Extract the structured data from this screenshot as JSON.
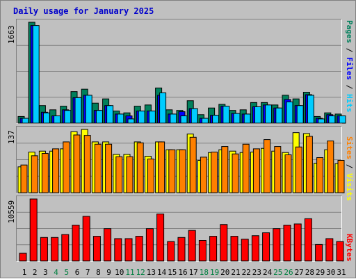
{
  "title": "Daily usage for January 2025",
  "colors": {
    "pages": "#00805c",
    "files": "#0000ff",
    "hits": "#00ccff",
    "visits": "#ffff00",
    "sites": "#ff8000",
    "kbytes": "#ff0000",
    "weekend_day": "#008040",
    "weekday": "#000000"
  },
  "right_labels": {
    "top": [
      {
        "text": "Pages",
        "color": "#00805c"
      },
      {
        "text": " / ",
        "color": "#000000"
      },
      {
        "text": "Files",
        "color": "#0000ff"
      },
      {
        "text": " / ",
        "color": "#000000"
      },
      {
        "text": "Hits",
        "color": "#00ccff"
      }
    ],
    "middle": [
      {
        "text": "Sites",
        "color": "#ff8000"
      },
      {
        "text": " / ",
        "color": "#000000"
      },
      {
        "text": "Visits",
        "color": "#ffff00"
      }
    ],
    "bottom": [
      {
        "text": "KBytes",
        "color": "#ff0000"
      }
    ]
  },
  "chart_data": [
    {
      "type": "bar",
      "panel": "hits",
      "ymax_label": "1663",
      "ylim": [
        0,
        1663
      ],
      "x": [
        1,
        2,
        3,
        4,
        5,
        6,
        7,
        8,
        9,
        10,
        11,
        12,
        13,
        14,
        15,
        16,
        17,
        18,
        19,
        20,
        21,
        22,
        23,
        24,
        25,
        26,
        27,
        28,
        29,
        30,
        31
      ],
      "series": [
        {
          "name": "Pages",
          "values": [
            110,
            1663,
            290,
            220,
            280,
            520,
            560,
            330,
            400,
            200,
            170,
            280,
            300,
            580,
            220,
            210,
            370,
            140,
            250,
            310,
            210,
            220,
            340,
            340,
            300,
            460,
            400,
            510,
            110,
            170,
            150
          ]
        },
        {
          "name": "Files",
          "values": [
            80,
            1610,
            180,
            120,
            220,
            420,
            460,
            210,
            290,
            150,
            120,
            200,
            200,
            460,
            150,
            190,
            240,
            80,
            130,
            280,
            160,
            150,
            270,
            300,
            250,
            390,
            290,
            470,
            80,
            140,
            120
          ]
        },
        {
          "name": "Hits",
          "values": [
            80,
            1610,
            170,
            120,
            210,
            420,
            460,
            210,
            290,
            150,
            70,
            200,
            200,
            500,
            150,
            120,
            240,
            80,
            130,
            280,
            160,
            150,
            270,
            300,
            250,
            350,
            290,
            460,
            70,
            120,
            120
          ]
        }
      ]
    },
    {
      "type": "bar",
      "panel": "visits",
      "ymax_label": "137",
      "ylim": [
        0,
        137
      ],
      "x": [
        1,
        2,
        3,
        4,
        5,
        6,
        7,
        8,
        9,
        10,
        11,
        12,
        13,
        14,
        15,
        16,
        17,
        18,
        19,
        20,
        21,
        22,
        23,
        24,
        25,
        26,
        27,
        28,
        29,
        30,
        31
      ],
      "series": [
        {
          "name": "Visits",
          "values": [
            56,
            88,
            90,
            90,
            95,
            132,
            137,
            110,
            110,
            83,
            83,
            110,
            79,
            110,
            93,
            93,
            127,
            70,
            87,
            93,
            90,
            87,
            88,
            96,
            90,
            87,
            130,
            128,
            64,
            93,
            63
          ]
        },
        {
          "name": "Sites",
          "values": [
            60,
            80,
            85,
            95,
            110,
            125,
            124,
            105,
            105,
            78,
            78,
            108,
            73,
            110,
            93,
            93,
            120,
            77,
            88,
            100,
            84,
            105,
            95,
            115,
            100,
            82,
            99,
            122,
            76,
            112,
            70
          ]
        }
      ]
    },
    {
      "type": "bar",
      "panel": "kbytes",
      "ymax_label": "10559",
      "ylim": [
        0,
        10559
      ],
      "x": [
        1,
        2,
        3,
        4,
        5,
        6,
        7,
        8,
        9,
        10,
        11,
        12,
        13,
        14,
        15,
        16,
        17,
        18,
        19,
        20,
        21,
        22,
        23,
        24,
        25,
        26,
        27,
        28,
        29,
        30,
        31
      ],
      "series": [
        {
          "name": "KBytes",
          "values": [
            1300,
            10559,
            4000,
            4000,
            4500,
            6100,
            7600,
            4200,
            5500,
            3800,
            3800,
            4200,
            5500,
            8000,
            3300,
            4000,
            5200,
            3500,
            4200,
            6200,
            4200,
            3700,
            4300,
            4800,
            5500,
            6100,
            6300,
            7200,
            2800,
            3800,
            3300
          ]
        }
      ]
    }
  ],
  "x_ticks": [
    {
      "label": "1",
      "weekend": false
    },
    {
      "label": "2",
      "weekend": false
    },
    {
      "label": "3",
      "weekend": false
    },
    {
      "label": "4",
      "weekend": true
    },
    {
      "label": "5",
      "weekend": true
    },
    {
      "label": "6",
      "weekend": false
    },
    {
      "label": "7",
      "weekend": false
    },
    {
      "label": "8",
      "weekend": false
    },
    {
      "label": "9",
      "weekend": false
    },
    {
      "label": "10",
      "weekend": false
    },
    {
      "label": "11",
      "weekend": true
    },
    {
      "label": "12",
      "weekend": true
    },
    {
      "label": "13",
      "weekend": false
    },
    {
      "label": "14",
      "weekend": false
    },
    {
      "label": "15",
      "weekend": false
    },
    {
      "label": "16",
      "weekend": false
    },
    {
      "label": "17",
      "weekend": false
    },
    {
      "label": "18",
      "weekend": true
    },
    {
      "label": "19",
      "weekend": true
    },
    {
      "label": "20",
      "weekend": false
    },
    {
      "label": "21",
      "weekend": false
    },
    {
      "label": "22",
      "weekend": false
    },
    {
      "label": "23",
      "weekend": false
    },
    {
      "label": "24",
      "weekend": false
    },
    {
      "label": "25",
      "weekend": true
    },
    {
      "label": "26",
      "weekend": true
    },
    {
      "label": "27",
      "weekend": false
    },
    {
      "label": "28",
      "weekend": false
    },
    {
      "label": "29",
      "weekend": false
    },
    {
      "label": "30",
      "weekend": false
    },
    {
      "label": "31",
      "weekend": false
    }
  ]
}
